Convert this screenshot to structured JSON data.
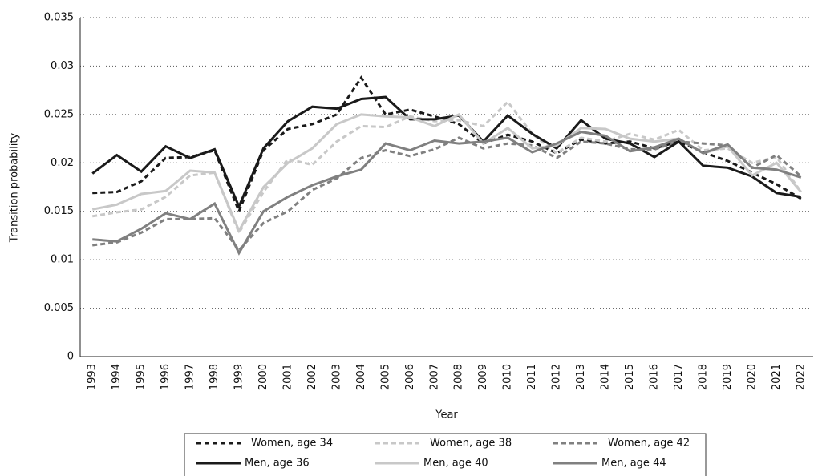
{
  "chart_data": {
    "type": "line",
    "x_label": "Year",
    "y_label": "Transition probability",
    "categories": [
      "1993",
      "1994",
      "1995",
      "1996",
      "1997",
      "1998",
      "1999",
      "2000",
      "2001",
      "2002",
      "2003",
      "2004",
      "2005",
      "2006",
      "2007",
      "2008",
      "2009",
      "2010",
      "2011",
      "2012",
      "2013",
      "2014",
      "2015",
      "2016",
      "2017",
      "2018",
      "2019",
      "2020",
      "2021",
      "2022"
    ],
    "ylim": [
      0,
      0.035
    ],
    "yticks": [
      0,
      0.005,
      0.01,
      0.015,
      0.02,
      0.025,
      0.03,
      0.035
    ],
    "grid": true,
    "legend": "bottom",
    "series": [
      {
        "name": "Women, age 34",
        "color": "#1a1a1a",
        "dash": true,
        "values": [
          0.0169,
          0.017,
          0.0181,
          0.0205,
          0.0206,
          0.0213,
          0.015,
          0.0213,
          0.0235,
          0.024,
          0.025,
          0.0288,
          0.025,
          0.0255,
          0.0248,
          0.024,
          0.022,
          0.0229,
          0.0222,
          0.021,
          0.0224,
          0.022,
          0.0222,
          0.0215,
          0.0222,
          0.0211,
          0.0202,
          0.019,
          0.0178,
          0.0163
        ]
      },
      {
        "name": "Women, age 38",
        "color": "#c8c8c8",
        "dash": true,
        "values": [
          0.0145,
          0.0149,
          0.0152,
          0.0165,
          0.0187,
          0.019,
          0.0128,
          0.017,
          0.0204,
          0.0198,
          0.0222,
          0.0238,
          0.0237,
          0.0248,
          0.0243,
          0.0244,
          0.0238,
          0.0263,
          0.023,
          0.021,
          0.0226,
          0.0222,
          0.023,
          0.0224,
          0.0234,
          0.0213,
          0.0215,
          0.02,
          0.0206,
          0.017
        ]
      },
      {
        "name": "Women, age 42",
        "color": "#808080",
        "dash": true,
        "values": [
          0.0115,
          0.0118,
          0.0128,
          0.0142,
          0.0142,
          0.0143,
          0.011,
          0.0138,
          0.015,
          0.0172,
          0.0184,
          0.0205,
          0.0213,
          0.0207,
          0.0214,
          0.0226,
          0.0215,
          0.022,
          0.0218,
          0.0205,
          0.0222,
          0.022,
          0.0214,
          0.0214,
          0.0222,
          0.022,
          0.0218,
          0.0195,
          0.0208,
          0.0186
        ]
      },
      {
        "name": "Men, age 36",
        "color": "#1a1a1a",
        "dash": false,
        "values": [
          0.0189,
          0.0208,
          0.0191,
          0.0217,
          0.0205,
          0.0214,
          0.0155,
          0.0215,
          0.0243,
          0.0258,
          0.0256,
          0.0266,
          0.0268,
          0.0245,
          0.0245,
          0.0249,
          0.0222,
          0.0249,
          0.023,
          0.0215,
          0.0244,
          0.0225,
          0.022,
          0.0206,
          0.0222,
          0.0197,
          0.0195,
          0.0186,
          0.0169,
          0.0165
        ]
      },
      {
        "name": "Men, age 40",
        "color": "#c8c8c8",
        "dash": false,
        "values": [
          0.0152,
          0.0157,
          0.0168,
          0.0171,
          0.0192,
          0.019,
          0.013,
          0.0175,
          0.02,
          0.0215,
          0.024,
          0.025,
          0.0248,
          0.0247,
          0.0238,
          0.025,
          0.022,
          0.0236,
          0.0215,
          0.0218,
          0.0236,
          0.0235,
          0.0225,
          0.0222,
          0.0225,
          0.021,
          0.0217,
          0.0187,
          0.02,
          0.017
        ]
      },
      {
        "name": "Men, age 44",
        "color": "#808080",
        "dash": false,
        "values": [
          0.0121,
          0.0119,
          0.0132,
          0.0148,
          0.0142,
          0.0158,
          0.0107,
          0.015,
          0.0165,
          0.0177,
          0.0186,
          0.0193,
          0.022,
          0.0213,
          0.0223,
          0.022,
          0.0222,
          0.0226,
          0.0211,
          0.022,
          0.0232,
          0.0228,
          0.0212,
          0.0216,
          0.0225,
          0.021,
          0.0219,
          0.0195,
          0.0193,
          0.0185
        ]
      }
    ]
  }
}
